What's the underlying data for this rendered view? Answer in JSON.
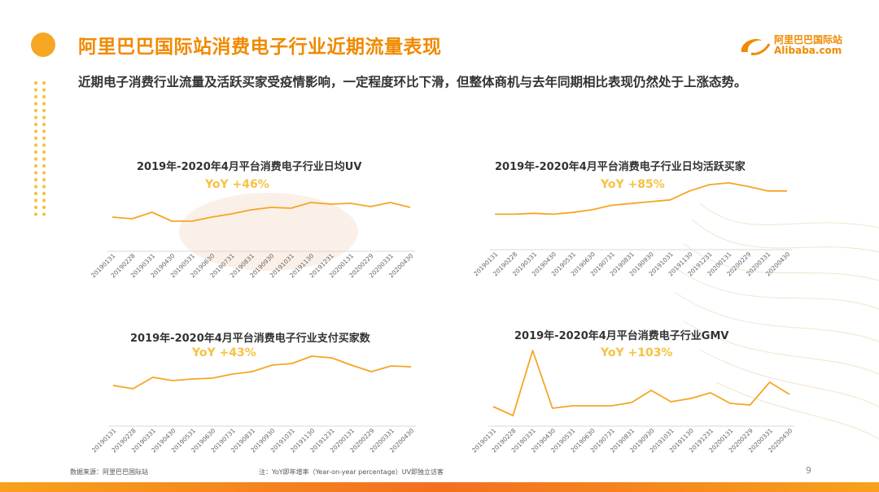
{
  "header": {
    "title": "阿里巴巴国际站消费电子行业近期流量表现",
    "subtitle": "近期电子消费行业流量及活跃买家受疫情影响，一定程度环比下滑，但整体商机与去年同期相比表现仍然处于上涨态势。"
  },
  "logo": {
    "cn": "阿里巴巴国际站",
    "en": "Alibaba.com",
    "brand_color": "#f08a00"
  },
  "colors": {
    "accent": "#f08a00",
    "line": "#f5a623",
    "yoy": "#f5c242",
    "axis": "#d9d9d9"
  },
  "chart_data": [
    {
      "type": "line",
      "title": "2019年-2020年4月平台消费电子行业日均UV",
      "annotation": "YoY +46%",
      "categories": [
        "20190131",
        "20190228",
        "20190331",
        "20190430",
        "20190531",
        "20190630",
        "20190731",
        "20190831",
        "20190930",
        "20191031",
        "20191130",
        "20191231",
        "20200131",
        "20200229",
        "20200331",
        "20200430"
      ],
      "values": [
        38,
        36,
        44,
        33,
        33,
        38,
        42,
        47,
        50,
        49,
        56,
        54,
        55,
        51,
        56,
        50
      ],
      "ylim": [
        0,
        80
      ]
    },
    {
      "type": "line",
      "title": "2019年-2020年4月平台消费电子行业日均活跃买家",
      "annotation": "YoY +85%",
      "categories": [
        "20190131",
        "20190228",
        "20190331",
        "20190430",
        "20190531",
        "20190630",
        "20190731",
        "20190831",
        "20190930",
        "20191031",
        "20191130",
        "20191231",
        "20200131",
        "20200229",
        "20200331",
        "20200430"
      ],
      "values": [
        36,
        36,
        37,
        36,
        38,
        41,
        46,
        48,
        50,
        52,
        62,
        69,
        71,
        67,
        62,
        62
      ],
      "ylim": [
        0,
        80
      ]
    },
    {
      "type": "line",
      "title": "2019年-2020年4月平台消费电子行业支付买家数",
      "annotation": "YoY +43%",
      "categories": [
        "20190131",
        "20190228",
        "20190331",
        "20190430",
        "20190531",
        "20190630",
        "20190731",
        "20190831",
        "20190930",
        "20191031",
        "20191130",
        "20191231",
        "20200131",
        "20200229",
        "20200331",
        "20200430"
      ],
      "values": [
        46,
        42,
        56,
        52,
        54,
        55,
        60,
        63,
        71,
        73,
        82,
        80,
        71,
        63,
        70,
        69
      ],
      "ylim": [
        0,
        100
      ]
    },
    {
      "type": "line",
      "title": "2019年-2020年4月平台消费电子行业GMV",
      "annotation": "YoY +103%",
      "categories": [
        "20190131",
        "20190228",
        "20190331",
        "20190430",
        "20190531",
        "20190630",
        "20190731",
        "20190831",
        "20190930",
        "20191031",
        "20191130",
        "20191231",
        "20200131",
        "20200229",
        "20200331",
        "20200430"
      ],
      "values": [
        20,
        9,
        89,
        18,
        21,
        21,
        21,
        25,
        40,
        26,
        30,
        37,
        24,
        22,
        50,
        35
      ],
      "ylim": [
        0,
        100
      ]
    }
  ],
  "footer": {
    "source": "数据来源：阿里巴巴国际站",
    "note": "注：YoY即年增率（Year-on-year percentage）UV即独立访客",
    "page": "9"
  }
}
